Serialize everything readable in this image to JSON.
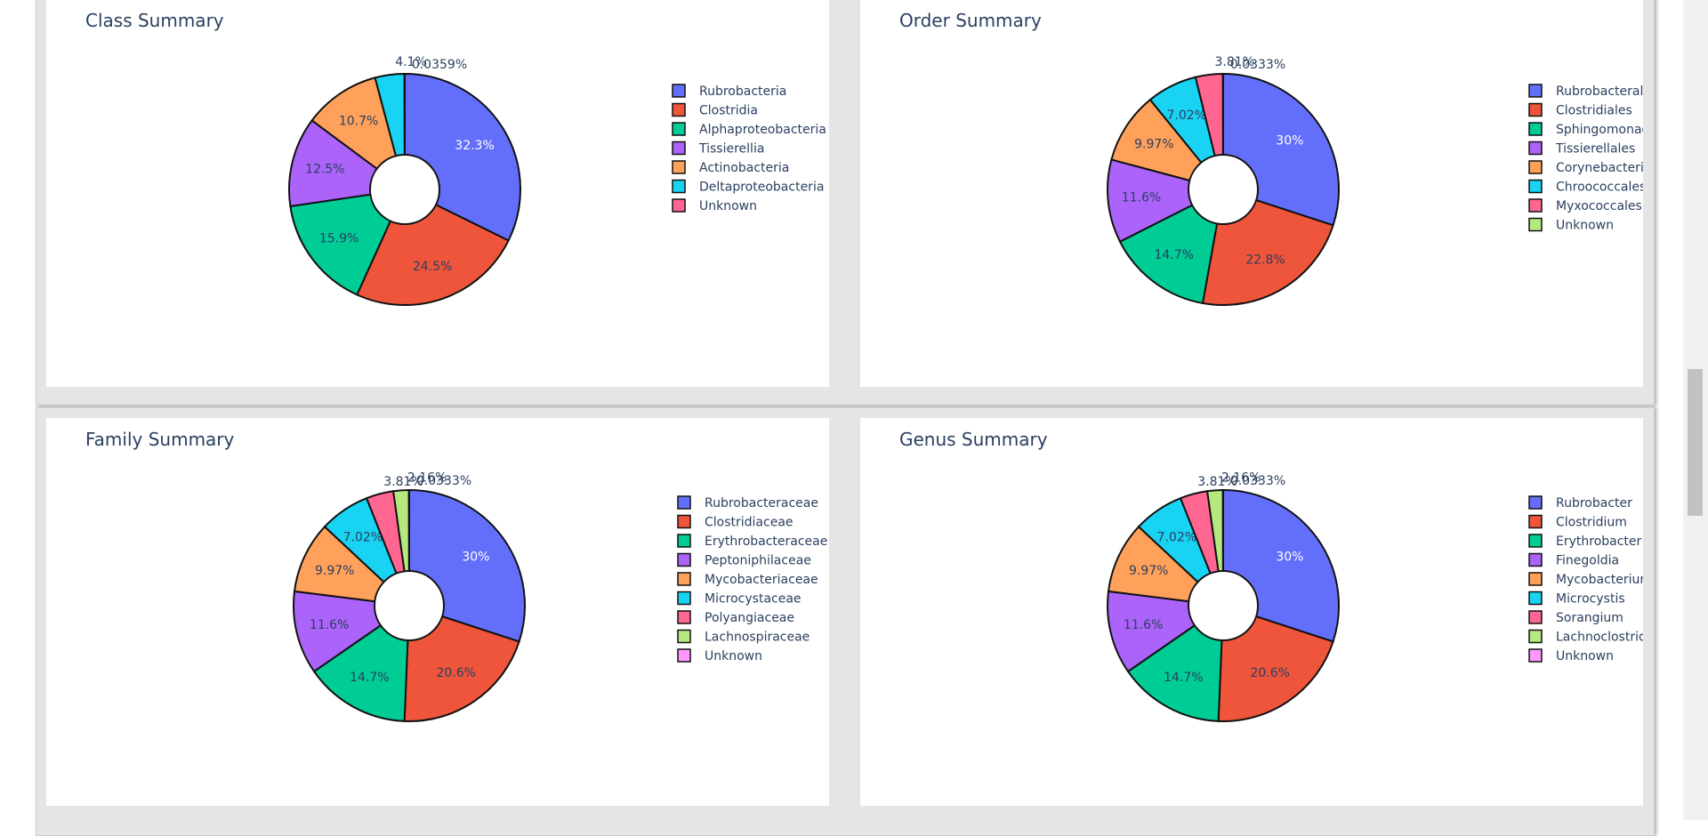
{
  "colors": {
    "palette": [
      "#636efa",
      "#ef553b",
      "#00cc96",
      "#ab63fa",
      "#ffa15a",
      "#19d3f3",
      "#ff6692",
      "#b6e880",
      "#ff97ff"
    ],
    "title_text": "#2a3f5f"
  },
  "chart_data": [
    {
      "type": "pie",
      "title": "Class Summary",
      "hole": true,
      "labels": [
        "Rubrobacteria",
        "Clostridia",
        "Alphaproteobacteria",
        "Tissierellia",
        "Actinobacteria",
        "Deltaproteobacteria",
        "Unknown"
      ],
      "values": [
        32.3,
        24.5,
        15.9,
        12.5,
        10.7,
        4.1,
        0.0359
      ],
      "slice_labels": [
        "32.3%",
        "24.5%",
        "15.9%",
        "12.5%",
        "10.7%",
        "4.1%",
        "0.0359%"
      ]
    },
    {
      "type": "pie",
      "title": "Order Summary",
      "hole": true,
      "labels": [
        "Rubrobacterales",
        "Clostridiales",
        "Sphingomonadales",
        "Tissierellales",
        "Corynebacteriales",
        "Chroococcales",
        "Myxococcales",
        "Unknown"
      ],
      "values": [
        30,
        22.8,
        14.7,
        11.6,
        9.97,
        7.02,
        3.81,
        0.0333
      ],
      "slice_labels": [
        "30%",
        "22.8%",
        "14.7%",
        "11.6%",
        "9.97%",
        "7.02%",
        "3.81%",
        "0.0333%"
      ]
    },
    {
      "type": "pie",
      "title": "Family Summary",
      "hole": true,
      "labels": [
        "Rubrobacteraceae",
        "Clostridiaceae",
        "Erythrobacteraceae",
        "Peptoniphilaceae",
        "Mycobacteriaceae",
        "Microcystaceae",
        "Polyangiaceae",
        "Lachnospiraceae",
        "Unknown"
      ],
      "values": [
        30,
        20.6,
        14.7,
        11.6,
        9.97,
        7.02,
        3.81,
        2.16,
        0.0333
      ],
      "slice_labels": [
        "30%",
        "20.6%",
        "14.7%",
        "11.6%",
        "9.97%",
        "7.02%",
        "3.81%",
        "2.16%",
        "0.0333%"
      ]
    },
    {
      "type": "pie",
      "title": "Genus Summary",
      "hole": true,
      "labels": [
        "Rubrobacter",
        "Clostridium",
        "Erythrobacter",
        "Finegoldia",
        "Mycobacterium",
        "Microcystis",
        "Sorangium",
        "Lachnoclostridium",
        "Unknown"
      ],
      "values": [
        30,
        20.6,
        14.7,
        11.6,
        9.97,
        7.02,
        3.81,
        2.16,
        0.0333
      ],
      "slice_labels": [
        "30%",
        "20.6%",
        "14.7%",
        "11.6%",
        "9.97%",
        "7.02%",
        "3.81%",
        "2.16%",
        "0.0333%"
      ]
    }
  ]
}
